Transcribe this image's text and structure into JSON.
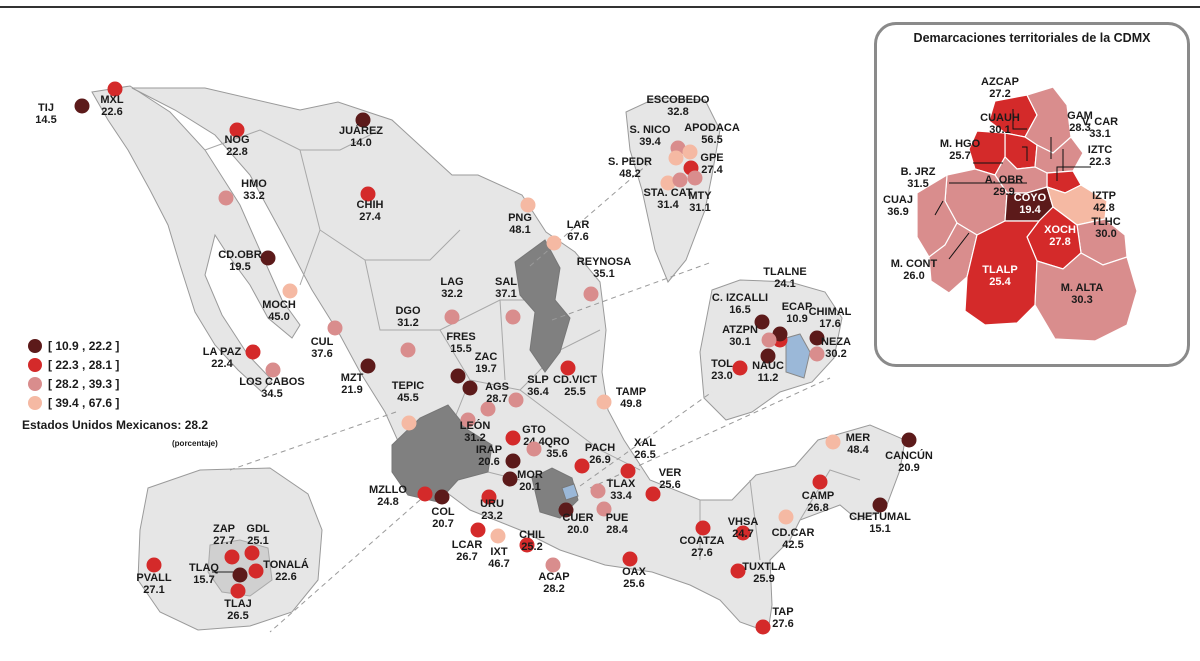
{
  "legend": {
    "classes": [
      {
        "label": "[ 10.9 , 22.2 ]",
        "color": "#5c1a1a"
      },
      {
        "label": "[ 22.3 , 28.1 ]",
        "color": "#d42a2a"
      },
      {
        "label": "[ 28.2 , 39.3 ]",
        "color": "#d98d8d"
      },
      {
        "label": "[ 39.4 , 67.6 ]",
        "color": "#f5b9a3"
      }
    ]
  },
  "national": {
    "label": "Estados Unidos Mexicanos:  28.2",
    "note": "(porcentaje)"
  },
  "cdmx": {
    "title": "Demarcaciones territoriales de la CDMX",
    "districts": [
      {
        "code": "AZCAP",
        "value": "27.2"
      },
      {
        "code": "GAM",
        "value": "28.3"
      },
      {
        "code": "CUAUH",
        "value": "30.1"
      },
      {
        "code": "V. CAR",
        "value": "33.1"
      },
      {
        "code": "M. HGO",
        "value": "25.7"
      },
      {
        "code": "IZTC",
        "value": "22.3"
      },
      {
        "code": "B. JRZ",
        "value": "31.5"
      },
      {
        "code": "A. OBR",
        "value": "29.9"
      },
      {
        "code": "COYO",
        "value": "19.4"
      },
      {
        "code": "IZTP",
        "value": "42.8"
      },
      {
        "code": "CUAJ",
        "value": "36.9"
      },
      {
        "code": "XOCH",
        "value": "27.8"
      },
      {
        "code": "TLHC",
        "value": "30.0"
      },
      {
        "code": "M. CONT",
        "value": "26.0"
      },
      {
        "code": "TLALP",
        "value": "25.4"
      },
      {
        "code": "M. ALTA",
        "value": "30.3"
      }
    ]
  },
  "cities": [
    {
      "code": "TIJ",
      "value": "14.5",
      "class": 0
    },
    {
      "code": "MXL",
      "value": "22.6",
      "class": 1
    },
    {
      "code": "NOG",
      "value": "22.8",
      "class": 1
    },
    {
      "code": "JUÁREZ",
      "value": "14.0",
      "class": 0
    },
    {
      "code": "HMO",
      "value": "33.2",
      "class": 2
    },
    {
      "code": "CHIH",
      "value": "27.4",
      "class": 1
    },
    {
      "code": "CD.OBR",
      "value": "19.5",
      "class": 0
    },
    {
      "code": "MOCH",
      "value": "45.0",
      "class": 3
    },
    {
      "code": "CUL",
      "value": "37.6",
      "class": 2
    },
    {
      "code": "LA PAZ",
      "value": "22.4",
      "class": 1
    },
    {
      "code": "LOS CABOS",
      "value": "34.5",
      "class": 2
    },
    {
      "code": "MZT",
      "value": "21.9",
      "class": 0
    },
    {
      "code": "DGO",
      "value": "31.2",
      "class": 2
    },
    {
      "code": "LAG",
      "value": "32.2",
      "class": 2
    },
    {
      "code": "SAL",
      "value": "37.1",
      "class": 2
    },
    {
      "code": "FRES",
      "value": "15.5",
      "class": 0
    },
    {
      "code": "ZAC",
      "value": "19.7",
      "class": 0
    },
    {
      "code": "TEPIC",
      "value": "45.5",
      "class": 3
    },
    {
      "code": "AGS",
      "value": "28.7",
      "class": 2
    },
    {
      "code": "SLP",
      "value": "36.4",
      "class": 2
    },
    {
      "code": "CD.VICT",
      "value": "25.5",
      "class": 1
    },
    {
      "code": "TAMP",
      "value": "49.8",
      "class": 3
    },
    {
      "code": "PNG",
      "value": "48.1",
      "class": 3
    },
    {
      "code": "LAR",
      "value": "67.6",
      "class": 3
    },
    {
      "code": "REYNOSA",
      "value": "35.1",
      "class": 2
    },
    {
      "code": "LEÓN",
      "value": "31.2",
      "class": 2
    },
    {
      "code": "GTO",
      "value": "24.4",
      "class": 1
    },
    {
      "code": "IRAP",
      "value": "20.6",
      "class": 0
    },
    {
      "code": "QRO",
      "value": "35.6",
      "class": 2
    },
    {
      "code": "PACH",
      "value": "26.9",
      "class": 1
    },
    {
      "code": "XAL",
      "value": "26.5",
      "class": 1
    },
    {
      "code": "MOR",
      "value": "20.1",
      "class": 0
    },
    {
      "code": "TLAX",
      "value": "33.4",
      "class": 2
    },
    {
      "code": "VER",
      "value": "25.6",
      "class": 1
    },
    {
      "code": "MZLLO",
      "value": "24.8",
      "class": 1
    },
    {
      "code": "COL",
      "value": "20.7",
      "class": 0
    },
    {
      "code": "URU",
      "value": "23.2",
      "class": 1
    },
    {
      "code": "CUER",
      "value": "20.0",
      "class": 0
    },
    {
      "code": "PUE",
      "value": "28.4",
      "class": 2
    },
    {
      "code": "LCAR",
      "value": "26.7",
      "class": 1
    },
    {
      "code": "IXT",
      "value": "46.7",
      "class": 3
    },
    {
      "code": "CHIL",
      "value": "25.2",
      "class": 1
    },
    {
      "code": "ACAP",
      "value": "28.2",
      "class": 2
    },
    {
      "code": "OAX",
      "value": "25.6",
      "class": 1
    },
    {
      "code": "COATZA",
      "value": "27.6",
      "class": 1
    },
    {
      "code": "VHSA",
      "value": "24.7",
      "class": 1
    },
    {
      "code": "TUXTLA",
      "value": "25.9",
      "class": 1
    },
    {
      "code": "TAP",
      "value": "27.6",
      "class": 1
    },
    {
      "code": "CAMP",
      "value": "26.8",
      "class": 1
    },
    {
      "code": "CD.CAR",
      "value": "42.5",
      "class": 3
    },
    {
      "code": "MER",
      "value": "48.4",
      "class": 3
    },
    {
      "code": "CANCÚN",
      "value": "20.9",
      "class": 0
    },
    {
      "code": "CHETUMAL",
      "value": "15.1",
      "class": 0
    },
    {
      "code": "ZAP",
      "value": "27.7",
      "class": 1
    },
    {
      "code": "GDL",
      "value": "25.1",
      "class": 1
    },
    {
      "code": "PVALL",
      "value": "27.1",
      "class": 1
    },
    {
      "code": "TLAQ",
      "value": "15.7",
      "class": 0
    },
    {
      "code": "TONALÁ",
      "value": "22.6",
      "class": 1
    },
    {
      "code": "TLAJ",
      "value": "26.5",
      "class": 1
    },
    {
      "code": "ESCOBEDO",
      "value": "32.8",
      "class": 2
    },
    {
      "code": "S. NICO",
      "value": "39.4",
      "class": 3
    },
    {
      "code": "APODACA",
      "value": "56.5",
      "class": 3
    },
    {
      "code": "S. PEDR",
      "value": "48.2",
      "class": 3
    },
    {
      "code": "GPE",
      "value": "27.4",
      "class": 1
    },
    {
      "code": "STA. CAT",
      "value": "31.4",
      "class": 2
    },
    {
      "code": "MTY",
      "value": "31.1",
      "class": 2
    },
    {
      "code": "TLALNE",
      "value": "24.1",
      "class": 1
    },
    {
      "code": "C. IZCALLI",
      "value": "16.5",
      "class": 0
    },
    {
      "code": "ECAP",
      "value": "10.9",
      "class": 0
    },
    {
      "code": "CHIMAL",
      "value": "17.6",
      "class": 0
    },
    {
      "code": "ATZPN",
      "value": "30.1",
      "class": 2
    },
    {
      "code": "NEZA",
      "value": "30.2",
      "class": 2
    },
    {
      "code": "TOL",
      "value": "23.0",
      "class": 1
    },
    {
      "code": "NAUC",
      "value": "11.2",
      "class": 0
    }
  ]
}
